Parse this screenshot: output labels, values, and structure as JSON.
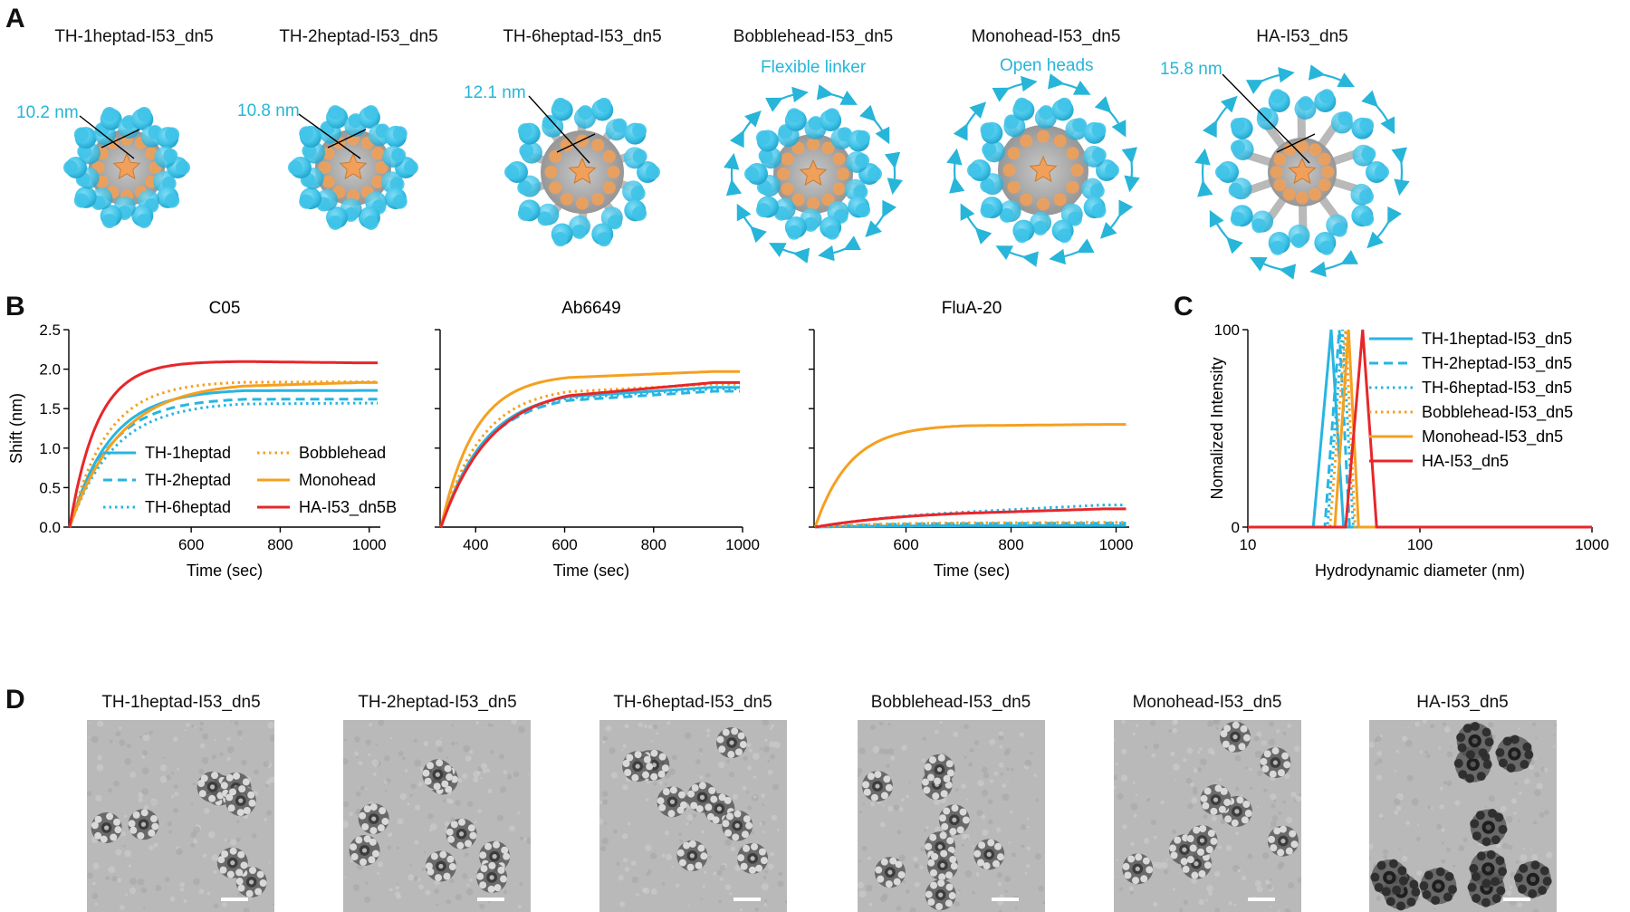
{
  "panels": {
    "A": "A",
    "B": "B",
    "C": "C",
    "D": "D"
  },
  "panel_a": {
    "titles": [
      "TH-1heptad-I53_dn5",
      "TH-2heptad-I53_dn5",
      "TH-6heptad-I53_dn5",
      "Bobblehead-I53_dn5",
      "Monohead-I53_dn5",
      "HA-I53_dn5"
    ],
    "sizes": [
      "10.2 nm",
      "10.8 nm",
      "12.1 nm",
      "15.8 nm"
    ],
    "notes": [
      "Flexible linker",
      "Open heads"
    ],
    "colors": {
      "head": "#3fc3e8",
      "core": "#9b9b9b",
      "pentamer": "#f0a05a",
      "annotation": "#27b5d9"
    }
  },
  "panel_d": {
    "titles": [
      "TH-1heptad-I53_dn5",
      "TH-2heptad-I53_dn5",
      "TH-6heptad-I53_dn5",
      "Bobblehead-I53_dn5",
      "Monohead-I53_dn5",
      "HA-I53_dn5"
    ]
  },
  "chart_data": [
    {
      "type": "line",
      "title": "C05",
      "xlabel": "Time (sec)",
      "ylabel": "Shift (nm)",
      "xlim": [
        325,
        1025
      ],
      "ylim": [
        0,
        2.5
      ],
      "xticks": [
        600,
        800,
        1000
      ],
      "yticks": [
        0.0,
        0.5,
        1.0,
        1.5,
        2.0,
        2.5
      ],
      "legend": [
        "TH-1heptad",
        "TH-2heptad",
        "TH-6heptad",
        "Bobblehead",
        "Monohead",
        "HA-I53_dn5B"
      ],
      "legend_placement": "bottom-left",
      "association_end": 720,
      "series": [
        {
          "name": "TH-1heptad",
          "color": "#27b5e2",
          "dash": "solid",
          "plateau": 1.75,
          "end": 1.73,
          "rate": 0.011
        },
        {
          "name": "TH-2heptad",
          "color": "#27b5e2",
          "dash": "dashed",
          "plateau": 1.64,
          "end": 1.62,
          "rate": 0.011
        },
        {
          "name": "TH-6heptad",
          "color": "#27b5e2",
          "dash": "dotted",
          "plateau": 1.59,
          "end": 1.57,
          "rate": 0.01
        },
        {
          "name": "Bobblehead",
          "color": "#f5a020",
          "dash": "dotted",
          "plateau": 1.85,
          "end": 1.84,
          "rate": 0.012
        },
        {
          "name": "Monohead",
          "color": "#f5a020",
          "dash": "solid",
          "plateau": 1.84,
          "end": 1.83,
          "rate": 0.009
        },
        {
          "name": "HA-I53_dn5B",
          "color": "#e8262a",
          "dash": "solid",
          "plateau": 2.1,
          "end": 2.08,
          "rate": 0.016
        }
      ]
    },
    {
      "type": "line",
      "title": "Ab6649",
      "xlabel": "Time (sec)",
      "ylabel": "",
      "xlim": [
        320,
        1000
      ],
      "ylim": [
        0,
        2.5
      ],
      "xticks": [
        400,
        600,
        800,
        1000
      ],
      "yticks": [
        0.0,
        0.5,
        1.0,
        1.5,
        2.0,
        2.5
      ],
      "association_end": 610,
      "series": [
        {
          "name": "TH-1heptad",
          "color": "#27b5e2",
          "dash": "solid",
          "plateau": 1.75,
          "end": 1.77,
          "rate": 0.01
        },
        {
          "name": "TH-2heptad",
          "color": "#27b5e2",
          "dash": "dashed",
          "plateau": 1.7,
          "end": 1.72,
          "rate": 0.01
        },
        {
          "name": "TH-6heptad",
          "color": "#27b5e2",
          "dash": "dotted",
          "plateau": 1.73,
          "end": 1.75,
          "rate": 0.01
        },
        {
          "name": "Bobblehead",
          "color": "#f5a020",
          "dash": "dotted",
          "plateau": 1.79,
          "end": 1.81,
          "rate": 0.011
        },
        {
          "name": "Monohead",
          "color": "#f5a020",
          "dash": "solid",
          "plateau": 1.94,
          "end": 1.97,
          "rate": 0.013
        },
        {
          "name": "HA-I53_dn5B",
          "color": "#e8262a",
          "dash": "solid",
          "plateau": 1.8,
          "end": 1.83,
          "rate": 0.009
        }
      ]
    },
    {
      "type": "line",
      "title": "FluA-20",
      "xlabel": "Time (sec)",
      "ylabel": "",
      "xlim": [
        425,
        1025
      ],
      "ylim": [
        0,
        2.5
      ],
      "xticks": [
        600,
        800,
        1000
      ],
      "yticks": [
        0.0,
        0.5,
        1.0,
        1.5,
        2.0,
        2.5
      ],
      "association_end": 720,
      "series": [
        {
          "name": "TH-1heptad",
          "color": "#27b5e2",
          "dash": "solid",
          "plateau": 0.02,
          "end": 0.02,
          "rate": 0.008
        },
        {
          "name": "TH-2heptad",
          "color": "#27b5e2",
          "dash": "dashed",
          "plateau": 0.05,
          "end": 0.05,
          "rate": 0.008
        },
        {
          "name": "TH-6heptad",
          "color": "#27b5e2",
          "dash": "dotted",
          "plateau": 0.28,
          "end": 0.28,
          "rate": 0.004
        },
        {
          "name": "Bobblehead",
          "color": "#f5a020",
          "dash": "dotted",
          "plateau": 0.06,
          "end": 0.06,
          "rate": 0.008
        },
        {
          "name": "Monohead",
          "color": "#f5a020",
          "dash": "solid",
          "plateau": 1.3,
          "end": 1.3,
          "rate": 0.015
        },
        {
          "name": "HA-I53_dn5B",
          "color": "#e8262a",
          "dash": "solid",
          "plateau": 0.23,
          "end": 0.23,
          "rate": 0.005
        }
      ]
    },
    {
      "type": "line",
      "title": "",
      "xlabel": "Hydrodynamic diameter (nm)",
      "ylabel": "Nomalized Intensity",
      "xscale": "log",
      "xlim": [
        10,
        1000
      ],
      "ylim": [
        0,
        100
      ],
      "xticks": [
        10,
        100,
        1000
      ],
      "yticks": [
        0,
        100
      ],
      "legend": [
        "TH-1heptad-I53_dn5",
        "TH-2heptad-I53_dn5",
        "TH-6heptad-I53_dn5",
        "Bobblehead-I53_dn5",
        "Monohead-I53_dn5",
        "HA-I53_dn5"
      ],
      "legend_placement": "top-right",
      "series": [
        {
          "name": "TH-1heptad-I53_dn5",
          "color": "#27b5e2",
          "dash": "solid",
          "left": 24,
          "peak": 30.5,
          "right": 36
        },
        {
          "name": "TH-2heptad-I53_dn5",
          "color": "#27b5e2",
          "dash": "dashed",
          "left": 28,
          "peak": 34,
          "right": 39
        },
        {
          "name": "TH-6heptad-I53_dn5",
          "color": "#27b5e2",
          "dash": "dotted",
          "left": 29,
          "peak": 35.5,
          "right": 41
        },
        {
          "name": "Bobblehead-I53_dn5",
          "color": "#f5a020",
          "dash": "dotted",
          "left": 30,
          "peak": 37,
          "right": 42
        },
        {
          "name": "Monohead-I53_dn5",
          "color": "#f5a020",
          "dash": "solid",
          "left": 32,
          "peak": 38.5,
          "right": 44
        },
        {
          "name": "HA-I53_dn5",
          "color": "#e8262a",
          "dash": "solid",
          "left": 37,
          "peak": 46.5,
          "right": 56
        }
      ]
    }
  ]
}
